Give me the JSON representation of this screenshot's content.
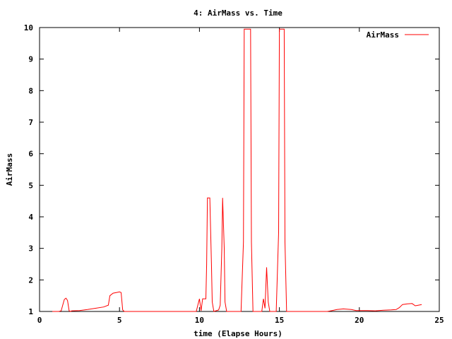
{
  "chart_data": {
    "type": "line",
    "title": "4: AirMass vs. Time",
    "xlabel": "time (Elapse Hours)",
    "ylabel": "AirMass",
    "xlim": [
      0,
      25
    ],
    "ylim": [
      1,
      10
    ],
    "x_ticks": [
      0,
      5,
      10,
      15,
      20,
      25
    ],
    "y_ticks": [
      1,
      2,
      3,
      4,
      5,
      6,
      7,
      8,
      9,
      10
    ],
    "grid": false,
    "legend_position": "top-right",
    "series": [
      {
        "name": "AirMass",
        "color": "#ff0000",
        "points": [
          [
            0.8,
            1.0
          ],
          [
            1.2,
            1.0
          ],
          [
            1.35,
            1.02
          ],
          [
            1.45,
            1.2
          ],
          [
            1.55,
            1.38
          ],
          [
            1.65,
            1.42
          ],
          [
            1.75,
            1.35
          ],
          [
            1.85,
            1.02
          ],
          [
            1.95,
            1.0
          ],
          [
            2.0,
            1.02
          ],
          [
            2.5,
            1.03
          ],
          [
            3.0,
            1.06
          ],
          [
            3.5,
            1.1
          ],
          [
            4.0,
            1.14
          ],
          [
            4.3,
            1.2
          ],
          [
            4.4,
            1.5
          ],
          [
            4.6,
            1.58
          ],
          [
            4.8,
            1.6
          ],
          [
            5.0,
            1.62
          ],
          [
            5.1,
            1.6
          ],
          [
            5.2,
            1.05
          ],
          [
            5.3,
            1.0
          ],
          [
            9.8,
            1.0
          ],
          [
            9.9,
            1.2
          ],
          [
            10.0,
            1.4
          ],
          [
            10.1,
            1.02
          ],
          [
            10.2,
            1.4
          ],
          [
            10.4,
            1.4
          ],
          [
            10.45,
            2.5
          ],
          [
            10.5,
            4.6
          ],
          [
            10.65,
            4.6
          ],
          [
            10.75,
            2.5
          ],
          [
            10.8,
            1.3
          ],
          [
            10.9,
            1.0
          ],
          [
            11.2,
            1.05
          ],
          [
            11.3,
            1.2
          ],
          [
            11.4,
            3.0
          ],
          [
            11.45,
            4.6
          ],
          [
            11.55,
            3.0
          ],
          [
            11.6,
            1.3
          ],
          [
            11.7,
            1.0
          ],
          [
            12.6,
            1.0
          ],
          [
            12.75,
            3.2
          ],
          [
            12.8,
            9.95
          ],
          [
            13.2,
            9.95
          ],
          [
            13.25,
            3.2
          ],
          [
            13.35,
            1.0
          ],
          [
            13.9,
            1.0
          ],
          [
            14.0,
            1.4
          ],
          [
            14.1,
            1.1
          ],
          [
            14.2,
            2.4
          ],
          [
            14.3,
            1.3
          ],
          [
            14.4,
            1.0
          ],
          [
            14.8,
            1.0
          ],
          [
            14.95,
            3.5
          ],
          [
            15.0,
            9.95
          ],
          [
            15.3,
            9.95
          ],
          [
            15.35,
            3.2
          ],
          [
            15.45,
            1.0
          ],
          [
            18.0,
            1.0
          ],
          [
            18.3,
            1.03
          ],
          [
            18.6,
            1.06
          ],
          [
            19.0,
            1.08
          ],
          [
            19.5,
            1.06
          ],
          [
            19.8,
            1.03
          ],
          [
            20.5,
            1.03
          ],
          [
            21.0,
            1.02
          ],
          [
            21.5,
            1.04
          ],
          [
            22.0,
            1.05
          ],
          [
            22.3,
            1.06
          ],
          [
            22.5,
            1.12
          ],
          [
            22.7,
            1.22
          ],
          [
            23.0,
            1.24
          ],
          [
            23.3,
            1.25
          ],
          [
            23.5,
            1.18
          ],
          [
            23.7,
            1.2
          ],
          [
            23.9,
            1.22
          ]
        ]
      }
    ]
  }
}
